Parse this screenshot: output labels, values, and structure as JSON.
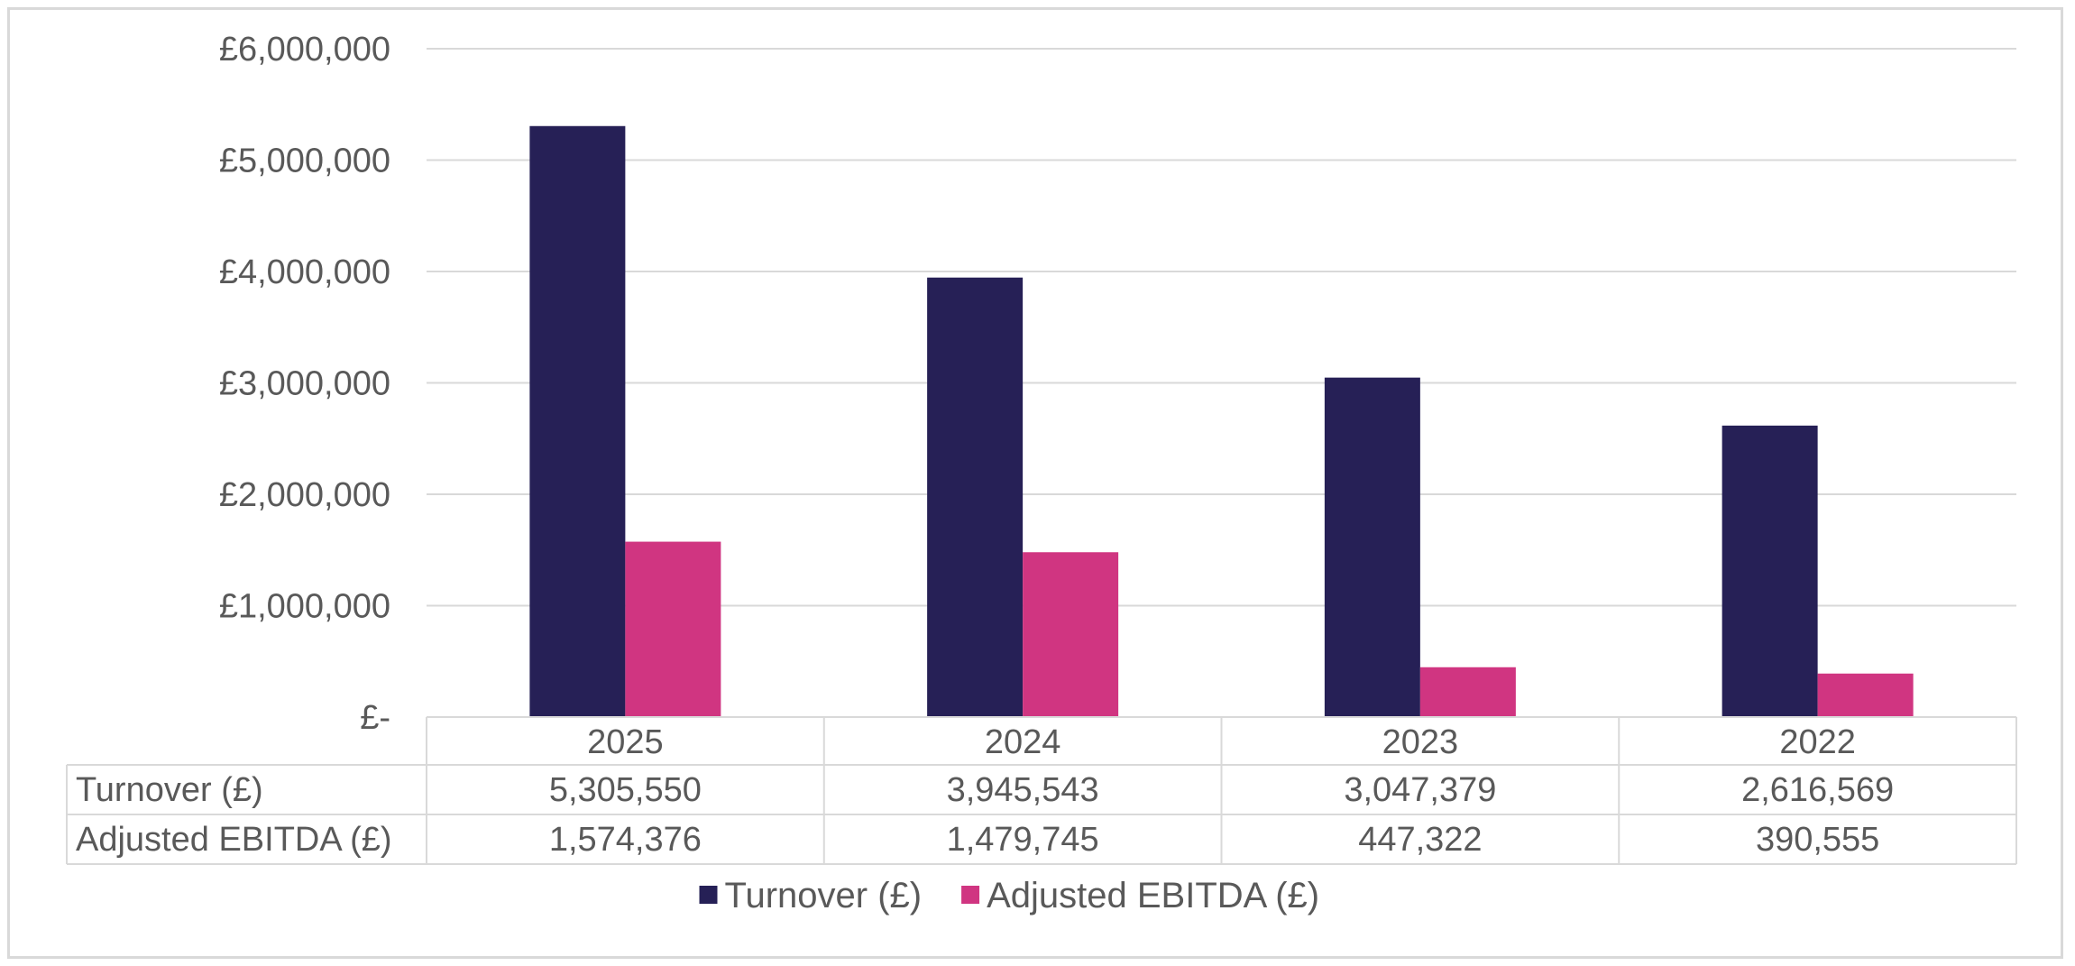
{
  "chart_data": {
    "type": "bar",
    "categories": [
      "2025",
      "2024",
      "2023",
      "2022"
    ],
    "series": [
      {
        "name": "Turnover (£)",
        "values": [
          5305550,
          3945543,
          3047379,
          2616569
        ],
        "color": "#262056"
      },
      {
        "name": "Adjusted EBITDA (£)",
        "values": [
          1574376,
          1479745,
          447322,
          390555
        ],
        "color": "#d03581"
      }
    ],
    "table": {
      "rows": [
        {
          "label": "Turnover (£)",
          "cells": [
            "5,305,550",
            "3,945,543",
            "3,047,379",
            "2,616,569"
          ]
        },
        {
          "label": "Adjusted EBITDA (£)",
          "cells": [
            "1,574,376",
            "1,479,745",
            "447,322",
            "390,555"
          ]
        }
      ]
    },
    "yticks": [
      "£-",
      "£1,000,000",
      "£2,000,000",
      "£3,000,000",
      "£4,000,000",
      "£5,000,000",
      "£6,000,000"
    ],
    "ylim": [
      0,
      6000000
    ],
    "grid": true,
    "legend": "bottom-center",
    "title": "",
    "xlabel": "",
    "ylabel": ""
  }
}
